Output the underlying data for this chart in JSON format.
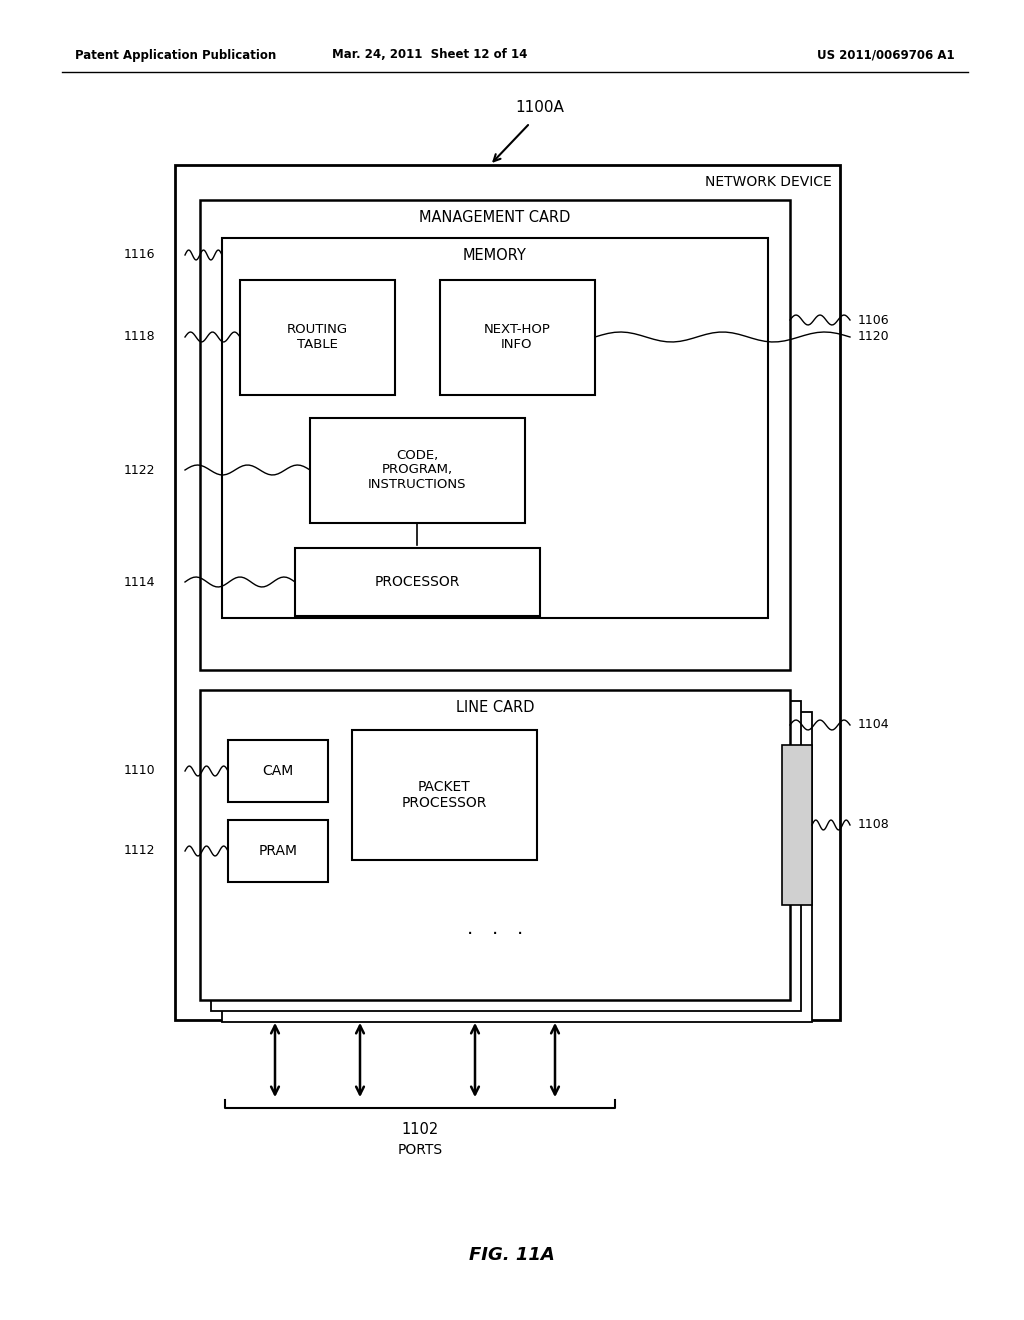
{
  "bg_color": "#ffffff",
  "header_left": "Patent Application Publication",
  "header_mid": "Mar. 24, 2011  Sheet 12 of 14",
  "header_right": "US 2011/0069706 A1",
  "fig_label": "FIG. 11A",
  "label_1100A": "1100A",
  "label_1102": "1102",
  "label_ports": "PORTS",
  "label_network_device": "NETWORK DEVICE",
  "label_management_card": "MANAGEMENT CARD",
  "label_line_card": "LINE CARD",
  "label_memory": "MEMORY",
  "label_routing_table": "ROUTING\nTABLE",
  "label_next_hop_info": "NEXT-HOP\nINFO",
  "label_code": "CODE,\nPROGRAM,\nINSTRUCTIONS",
  "label_processor": "PROCESSOR",
  "label_cam": "CAM",
  "label_pram": "PRAM",
  "label_packet_processor": "PACKET\nPROCESSOR",
  "ref_1106": "1106",
  "ref_1116": "1116",
  "ref_1118": "1118",
  "ref_1120": "1120",
  "ref_1122": "1122",
  "ref_1114": "1114",
  "ref_1104": "1104",
  "ref_1110": "1110",
  "ref_1112": "1112",
  "ref_1108": "1108"
}
